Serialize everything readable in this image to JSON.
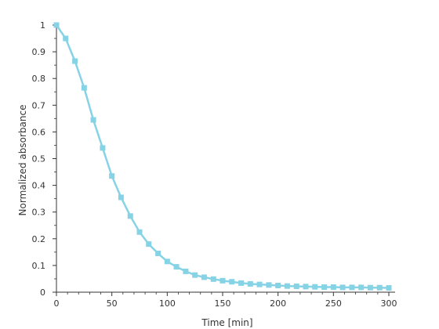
{
  "chart_data": {
    "type": "line",
    "xlabel": "Time [min]",
    "ylabel": "Normalized absorbance",
    "xlim": [
      0,
      300
    ],
    "ylim": [
      0,
      1
    ],
    "x_ticks": [
      0,
      50,
      100,
      150,
      200,
      250,
      300
    ],
    "y_ticks": [
      0,
      0.1,
      0.2,
      0.3,
      0.4,
      0.5,
      0.6,
      0.7,
      0.8,
      0.9,
      1
    ],
    "grid": false,
    "legend": "none",
    "color": "#86D3E6",
    "series": [
      {
        "x": [
          0,
          8.3,
          16.7,
          25,
          33.3,
          41.7,
          50,
          58.3,
          66.7,
          75,
          83.3,
          91.7,
          100,
          108.3,
          116.7,
          125,
          133.3,
          141.7,
          150,
          158.3,
          166.7,
          175,
          183.3,
          191.7,
          200,
          208.3,
          216.7,
          225,
          233.3,
          241.7,
          250,
          258.3,
          266.7,
          275,
          283.3,
          291.7,
          300
        ],
        "y": [
          1.0,
          0.95,
          0.865,
          0.765,
          0.645,
          0.54,
          0.435,
          0.355,
          0.285,
          0.225,
          0.18,
          0.145,
          0.115,
          0.095,
          0.078,
          0.064,
          0.056,
          0.049,
          0.043,
          0.039,
          0.034,
          0.031,
          0.029,
          0.027,
          0.025,
          0.023,
          0.022,
          0.021,
          0.02,
          0.019,
          0.019,
          0.018,
          0.018,
          0.018,
          0.017,
          0.017,
          0.016
        ]
      }
    ]
  }
}
